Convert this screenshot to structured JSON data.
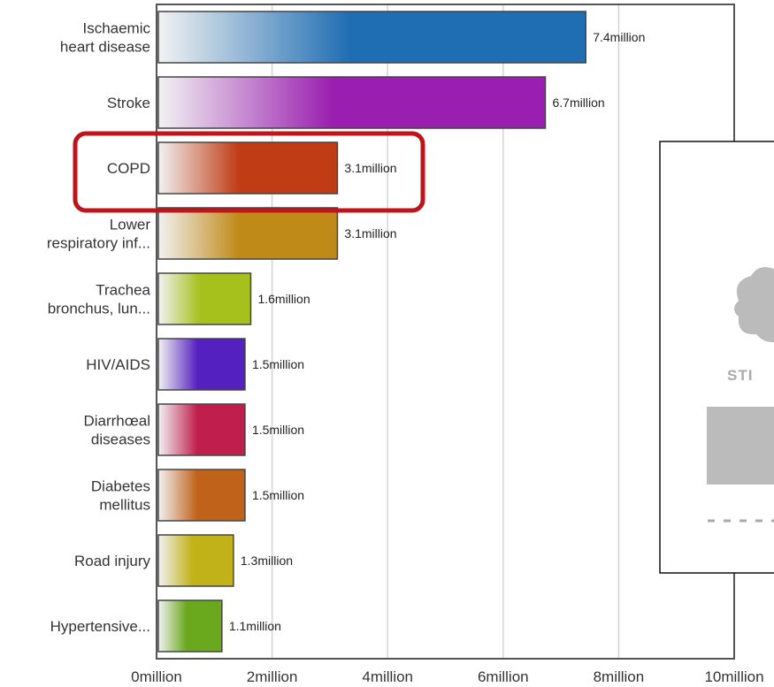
{
  "chart_data": {
    "type": "bar",
    "orientation": "horizontal",
    "categories": [
      "Ischaemic\nheart disease",
      "Stroke",
      "COPD",
      "Lower\nrespiratory inf...",
      "Trachea\nbronchus, lun...",
      "HIV/AIDS",
      "Diarrhœal\ndiseases",
      "Diabetes\nmellitus",
      "Road injury",
      "Hypertensive..."
    ],
    "values": [
      7.4,
      6.7,
      3.1,
      3.1,
      1.6,
      1.5,
      1.5,
      1.5,
      1.3,
      1.1
    ],
    "value_labels": [
      "7.4million",
      "6.7million",
      "3.1million",
      "3.1million",
      "1.6million",
      "1.5million",
      "1.5million",
      "1.5million",
      "1.3million",
      "1.1million"
    ],
    "colors": [
      "#1f6db3",
      "#9a1fb0",
      "#bf3c14",
      "#c08a18",
      "#a6c11c",
      "#5520c0",
      "#c01f4e",
      "#c0621a",
      "#c2b21a",
      "#6aa81e"
    ],
    "xlim": [
      0,
      10
    ],
    "xticks": [
      {
        "value": 0,
        "label": "0million"
      },
      {
        "value": 2,
        "label": "2million"
      },
      {
        "value": 4,
        "label": "4million"
      },
      {
        "value": 6,
        "label": "6million"
      },
      {
        "value": 8,
        "label": "8million"
      },
      {
        "value": 10,
        "label": "10million"
      }
    ],
    "grid": true
  },
  "panel": {
    "text": "STI"
  }
}
